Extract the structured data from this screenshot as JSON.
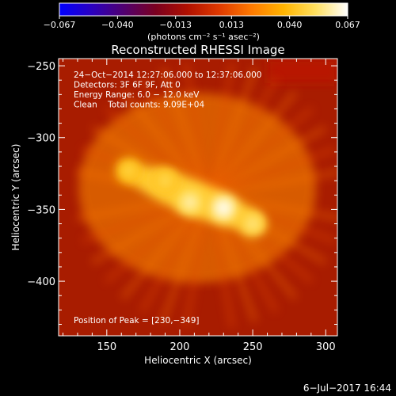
{
  "chart_data": {
    "type": "heatmap",
    "title": "Reconstructed RHESSI Image",
    "xlabel": "Heliocentric X (arcsec)",
    "ylabel": "Heliocentric Y (arcsec)",
    "xlim": [
      117,
      308
    ],
    "ylim": [
      -438,
      -245
    ],
    "xticks": [
      150,
      200,
      250,
      300
    ],
    "yticks": [
      -250,
      -300,
      -350,
      -400
    ],
    "xtick_labels": [
      "150",
      "200",
      "250",
      "300"
    ],
    "ytick_labels": [
      "−250",
      "−300",
      "−350",
      "−400"
    ],
    "colorbar": {
      "min": -0.067,
      "max": 0.067,
      "ticks": [
        -0.067,
        -0.04,
        -0.013,
        0.013,
        0.04,
        0.067
      ],
      "tick_labels": [
        "−0.067",
        "−0.040",
        "−0.013",
        "0.013",
        "0.040",
        "0.067"
      ],
      "units_label": "(photons cm⁻² s⁻¹ asec⁻²)",
      "colormap": [
        "#0000ff",
        "#2a00c0",
        "#500070",
        "#7a0020",
        "#b01000",
        "#e03a00",
        "#ff7a00",
        "#ffb400",
        "#ffe060",
        "#ffffff"
      ]
    },
    "annotations": [
      "24−Oct−2014 12:27:06.000 to 12:37:06.000",
      "Detectors: 3F 6F 9F, Att 0",
      "Energy Range: 6.0 − 12.0 keV",
      "Clean    Total counts: 9.09E+04"
    ],
    "peak_label": "Position of Peak = [230,−349]",
    "peak": [
      230,
      -349
    ],
    "sources": [
      {
        "x": 230,
        "y": -349,
        "peak": 0.067
      },
      {
        "x": 207,
        "y": -345,
        "peak": 0.06
      },
      {
        "x": 250,
        "y": -360,
        "peak": 0.055
      },
      {
        "x": 165,
        "y": -323,
        "peak": 0.048
      },
      {
        "x": 190,
        "y": -330,
        "peak": 0.05
      }
    ],
    "timestamp": "6−Jul−2017 16:44"
  }
}
